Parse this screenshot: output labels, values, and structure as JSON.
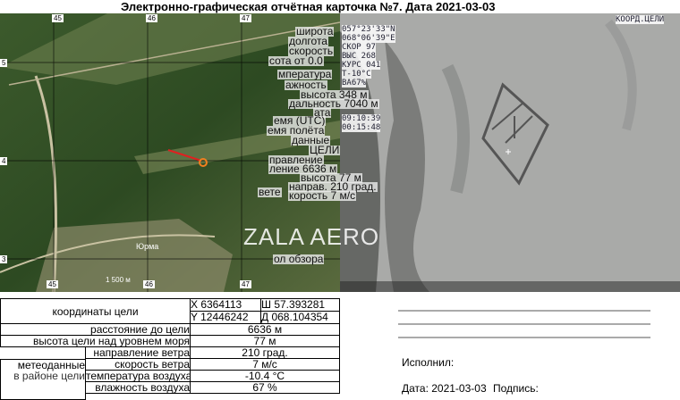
{
  "header": {
    "title": "Электронно-графическая отчётная карточка №7. Дата 2021-03-03"
  },
  "map": {
    "grid_top": [
      "45",
      "46",
      "47"
    ],
    "grid_bottom": [
      "45",
      "46",
      "47"
    ],
    "grid_left": [
      "5",
      "4",
      "3"
    ],
    "place": "Юрма",
    "scale": "1 500 м",
    "overlay": [
      "широта",
      "долгота",
      "скорость",
      "сота от 0.0",
      "мпература",
      "ажность",
      "высота 348 м",
      "дальность 7040 м",
      "ата",
      "емя (UTC)",
      "емя полёта",
      "данные",
      "ЦЕЛИ",
      "правление",
      "ление 6636 м",
      "высота 77 м",
      "направ. 210 град.",
      "вете",
      "корость 7 м/с",
      "ол обзора"
    ],
    "watermark": "ZALA AERO"
  },
  "thermal": {
    "label": "КООРД.ЦЕЛИ",
    "telemetry": [
      "057°23'33\"N",
      "068°06'39\"E",
      "СКОР  97",
      "ВЫС  268",
      "КУРС 041",
      "T-10°C",
      "ВА67%",
      "09:10:39",
      "00:15:48"
    ]
  },
  "table": {
    "coords": {
      "label": "координаты цели",
      "x": "X 6364113",
      "lat": "Ш 57.393281",
      "y": "Y 12446242",
      "lon": "Д 068.104354"
    },
    "rows": [
      [
        "расстояние до цели",
        "6636 м"
      ],
      [
        "высота цели над уровнем моря",
        "77 м"
      ]
    ],
    "meteo": {
      "label": "метеоданные",
      "area": "в районе цели",
      "rows": [
        [
          "направление ветра",
          "210 град."
        ],
        [
          "скорость ветра",
          "7 м/с"
        ],
        [
          "температура воздуха",
          "-10.4 °C"
        ],
        [
          "влажность воздуха",
          "67 %"
        ]
      ]
    }
  },
  "signature": {
    "executor": "Исполнил:",
    "date": "Дата: 2021-03-03",
    "sign": "Подпись:"
  }
}
